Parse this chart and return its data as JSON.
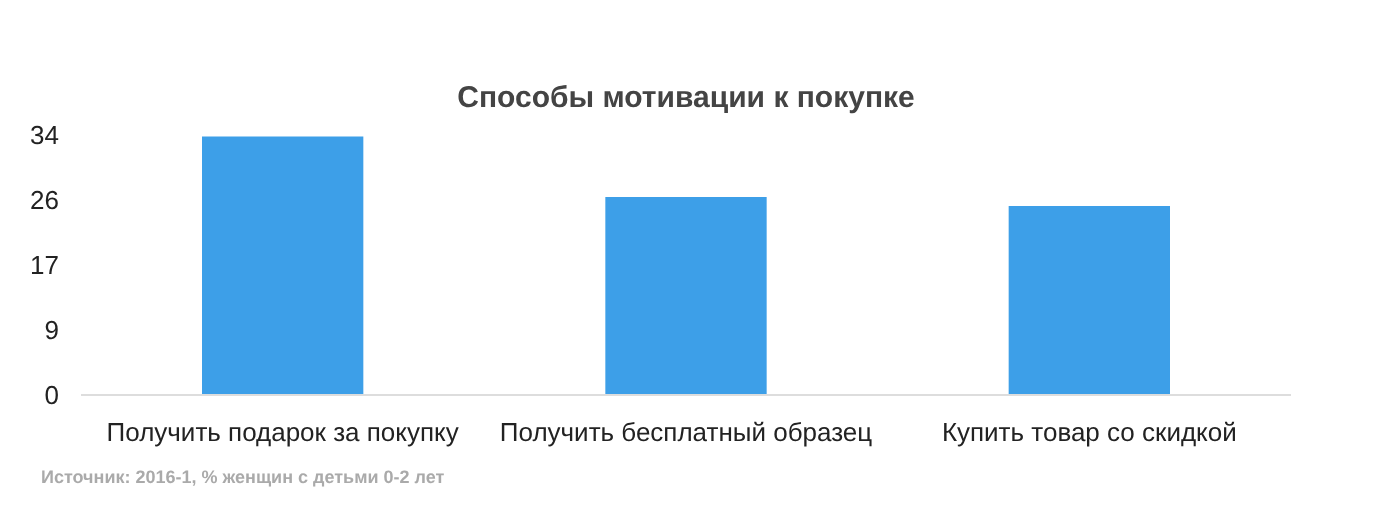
{
  "chart_data": {
    "type": "bar",
    "title": "Способы мотивации к покупке",
    "categories": [
      "Получить подарок за покупку",
      "Получить бесплатный образец",
      "Купить товар со скидкой"
    ],
    "values": [
      33.8,
      25.9,
      24.7
    ],
    "color": "#3d9fe8",
    "ylim": [
      0,
      34
    ],
    "yticks": [
      0,
      {
        "value": 8.5,
        "label": "9"
      },
      17,
      {
        "value": 25.5,
        "label": "26"
      },
      34
    ],
    "grid": false,
    "annotations": [
      "Источник: 2016-1, %  женщин с детьми 0-2 лет"
    ]
  }
}
